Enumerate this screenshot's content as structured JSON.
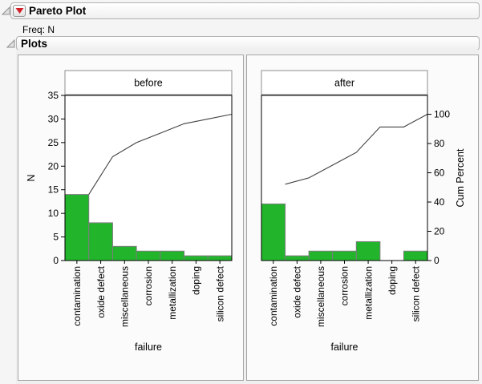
{
  "header": {
    "title": "Pareto Plot",
    "freq": "Freq: N"
  },
  "plots_section": {
    "title": "Plots"
  },
  "colors": {
    "bar_fill": "#22b52c",
    "bar_stroke": "#7d7d7d",
    "cum_line": "#404040",
    "plot_border": "#000000",
    "title_box_border": "#8c8c8c",
    "red_triangle": "#d02028",
    "disclosure_fill": "#e0e0e0",
    "disclosure_stroke": "#909090",
    "panel_bg": "#fbfbfb",
    "section_bg": "#efefef"
  },
  "chart_data": [
    {
      "type": "bar",
      "subtype": "pareto",
      "panel_title": "before",
      "categories": [
        "contamination",
        "oxide defect",
        "miscellaneous",
        "corrosion",
        "metallization",
        "doping",
        "silicon defect"
      ],
      "values": [
        14,
        8,
        3,
        2,
        2,
        1,
        1
      ],
      "cumulative": [
        14,
        22,
        25,
        27,
        29,
        30,
        31
      ],
      "cumulative_percent": [
        45.2,
        71.0,
        80.6,
        87.1,
        93.5,
        96.8,
        100
      ],
      "total": 31,
      "xlabel": "failure",
      "ylabel": "N",
      "ylim": [
        0,
        35
      ],
      "yticks": [
        0,
        5,
        10,
        15,
        20,
        25,
        30,
        35
      ],
      "grid": false,
      "legend": "none"
    },
    {
      "type": "bar",
      "subtype": "pareto",
      "panel_title": "after",
      "categories": [
        "contamination",
        "oxide defect",
        "miscellaneous",
        "corrosion",
        "metallization",
        "doping",
        "silicon defect"
      ],
      "values": [
        12,
        1,
        2,
        2,
        4,
        0,
        2
      ],
      "cumulative": [
        12,
        13,
        15,
        17,
        21,
        21,
        23
      ],
      "cumulative_percent": [
        52.2,
        56.5,
        65.2,
        73.9,
        91.3,
        91.3,
        100
      ],
      "total": 23,
      "xlabel": "failure",
      "y2label": "Cum Percent",
      "y2lim": [
        0,
        100
      ],
      "y2ticks": [
        0,
        20,
        40,
        60,
        80,
        100
      ],
      "shared_ylim": [
        0,
        35
      ],
      "grid": false,
      "legend": "none"
    }
  ]
}
